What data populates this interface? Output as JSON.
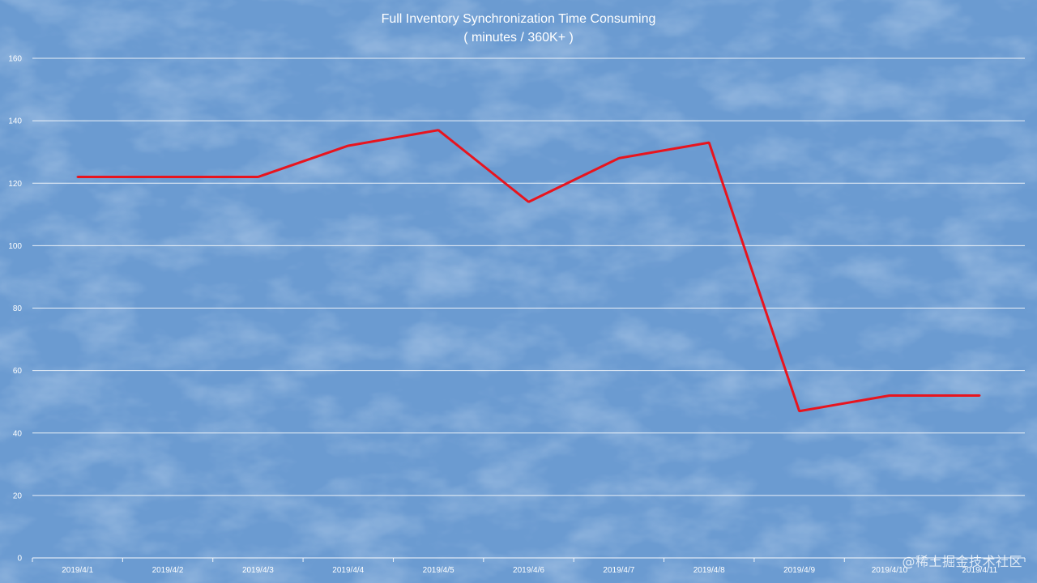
{
  "chart_data": {
    "type": "line",
    "title": "Full Inventory  Synchronization Time Consuming",
    "subtitle": "( minutes / 360K+ )",
    "xlabel": "",
    "ylabel": "",
    "categories": [
      "2019/4/1",
      "2019/4/2",
      "2019/4/3",
      "2019/4/4",
      "2019/4/5",
      "2019/4/6",
      "2019/4/7",
      "2019/4/8",
      "2019/4/9",
      "2019/4/10",
      "2019/4/11"
    ],
    "y_ticks": [
      "0",
      "20",
      "40",
      "60",
      "80",
      "100",
      "120",
      "140",
      "160"
    ],
    "ylim": [
      0,
      160
    ],
    "grid": true,
    "legend": "none",
    "series": [
      {
        "values": [
          122,
          122,
          122,
          132,
          137,
          114,
          128,
          133,
          47,
          52,
          52
        ]
      }
    ],
    "colors": {
      "background": "#6b9bd1",
      "line": "#e8141e",
      "gridline": "#ffffff",
      "text": "#ffffff"
    }
  },
  "watermark": "@稀土掘金技术社区"
}
